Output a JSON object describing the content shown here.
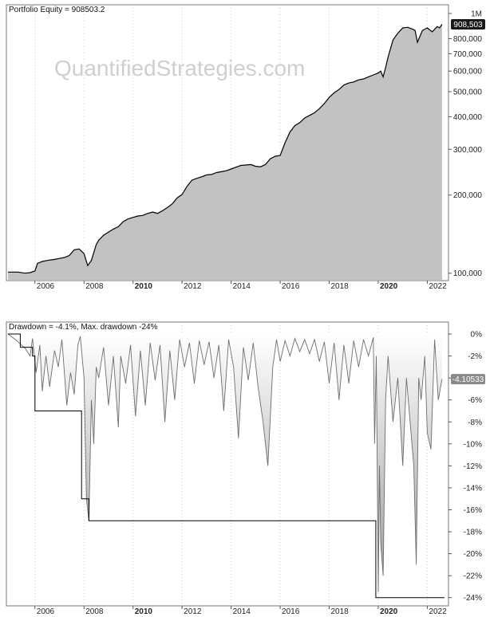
{
  "watermark": "QuantifiedStrategies.com",
  "colors": {
    "equity_fill": "#c2c2c2",
    "equity_line": "#000000",
    "drawdown_fill_top": "#ffffff",
    "drawdown_fill_bottom": "#9a9a9a",
    "maxdd_line": "#000000",
    "badge_bg": "#1a1a1a",
    "badge_dd_bg": "#8a8a8a"
  },
  "chart_data": [
    {
      "type": "area",
      "title": "Portfolio Equity = 908503.2",
      "y_scale": "log",
      "ylim": [
        95000,
        1050000
      ],
      "xlim": [
        2004.9,
        2022.8
      ],
      "x_tick_labels": [
        "2006",
        "2008",
        "2010",
        "2012",
        "2014",
        "2016",
        "2018",
        "2020",
        "2022"
      ],
      "x_tick_values": [
        2006,
        2008,
        2010,
        2012,
        2014,
        2016,
        2018,
        2020,
        2022
      ],
      "bold_years": [
        "2010",
        "2020"
      ],
      "y_ticks": [
        {
          "value": 100000,
          "label": "100,000"
        },
        {
          "value": 200000,
          "label": "200,000"
        },
        {
          "value": 300000,
          "label": "300,000"
        },
        {
          "value": 400000,
          "label": "400,000"
        },
        {
          "value": 500000,
          "label": "500,000"
        },
        {
          "value": 600000,
          "label": "600,000"
        },
        {
          "value": 700000,
          "label": "700,000"
        },
        {
          "value": 800000,
          "label": "800,000"
        },
        {
          "value": 1000000,
          "label": "1M"
        }
      ],
      "last_value_label": "908,503",
      "last_value": 908503,
      "series": [
        {
          "x": [
            2004.9,
            2005.3,
            2005.6,
            2005.8,
            2006.0,
            2006.1,
            2006.3,
            2006.5,
            2006.8,
            2007.0,
            2007.2,
            2007.4,
            2007.6,
            2007.8,
            2008.0,
            2008.15,
            2008.3,
            2008.5,
            2008.6,
            2008.8,
            2009.0,
            2009.2,
            2009.4,
            2009.6,
            2009.8,
            2010.0,
            2010.2,
            2010.4,
            2010.6,
            2010.8,
            2011.0,
            2011.2,
            2011.4,
            2011.6,
            2011.8,
            2012.0,
            2012.2,
            2012.4,
            2012.6,
            2012.8,
            2013.0,
            2013.2,
            2013.4,
            2013.6,
            2013.8,
            2014.0,
            2014.2,
            2014.4,
            2014.6,
            2014.8,
            2015.0,
            2015.2,
            2015.4,
            2015.6,
            2015.8,
            2016.0,
            2016.2,
            2016.4,
            2016.6,
            2016.8,
            2017.0,
            2017.2,
            2017.4,
            2017.6,
            2017.8,
            2018.0,
            2018.2,
            2018.4,
            2018.6,
            2018.8,
            2019.0,
            2019.2,
            2019.4,
            2019.6,
            2019.8,
            2020.0,
            2020.1,
            2020.2,
            2020.3,
            2020.4,
            2020.6,
            2020.8,
            2021.0,
            2021.2,
            2021.4,
            2021.5,
            2021.6,
            2021.8,
            2022.0,
            2022.2,
            2022.4,
            2022.5,
            2022.6
          ],
          "y": [
            101000,
            101000,
            100000,
            100500,
            102000,
            109000,
            111000,
            112000,
            113000,
            114000,
            115000,
            117000,
            123000,
            124000,
            119000,
            107000,
            112000,
            129000,
            134000,
            140000,
            144000,
            148000,
            151000,
            158000,
            162000,
            164000,
            166000,
            167000,
            170000,
            172000,
            170000,
            174000,
            179000,
            185000,
            195000,
            201000,
            216000,
            228000,
            232000,
            235000,
            239000,
            240000,
            244000,
            246000,
            248000,
            252000,
            256000,
            260000,
            261000,
            262000,
            258000,
            257000,
            262000,
            276000,
            282000,
            284000,
            318000,
            350000,
            370000,
            380000,
            396000,
            405000,
            415000,
            430000,
            450000,
            475000,
            495000,
            510000,
            530000,
            540000,
            545000,
            555000,
            560000,
            570000,
            580000,
            590000,
            600000,
            570000,
            620000,
            680000,
            790000,
            840000,
            880000,
            885000,
            870000,
            860000,
            775000,
            860000,
            880000,
            850000,
            890000,
            880000,
            908503
          ]
        }
      ]
    },
    {
      "type": "area",
      "title": "Drawdown = -4.1%, Max. drawdown -24%",
      "ylim": [
        -24.6,
        0.8
      ],
      "xlim": [
        2004.9,
        2022.8
      ],
      "x_tick_labels": [
        "2006",
        "2008",
        "2010",
        "2012",
        "2014",
        "2016",
        "2018",
        "2020",
        "2022"
      ],
      "x_tick_values": [
        2006,
        2008,
        2010,
        2012,
        2014,
        2016,
        2018,
        2020,
        2022
      ],
      "bold_years": [
        "2010",
        "2020"
      ],
      "y_ticks": [
        {
          "value": 0,
          "label": "0%"
        },
        {
          "value": -2,
          "label": "-2%"
        },
        {
          "value": -4,
          "label": "-4%"
        },
        {
          "value": -6,
          "label": "-6%"
        },
        {
          "value": -8,
          "label": "-8%"
        },
        {
          "value": -10,
          "label": "-10%"
        },
        {
          "value": -12,
          "label": "-12%"
        },
        {
          "value": -14,
          "label": "-14%"
        },
        {
          "value": -16,
          "label": "-16%"
        },
        {
          "value": -18,
          "label": "-18%"
        },
        {
          "value": -20,
          "label": "-20%"
        },
        {
          "value": -22,
          "label": "-22%"
        },
        {
          "value": -24,
          "label": "-24%"
        }
      ],
      "last_value_label": "-4.10533",
      "last_value": -4.10533,
      "series": [
        {
          "name": "Drawdown",
          "x": [
            2004.9,
            2005.2,
            2005.4,
            2005.6,
            2005.8,
            2005.9,
            2006.05,
            2006.2,
            2006.3,
            2006.45,
            2006.6,
            2006.8,
            2006.95,
            2007.1,
            2007.3,
            2007.45,
            2007.6,
            2007.75,
            2007.85,
            2008.0,
            2008.1,
            2008.2,
            2008.3,
            2008.4,
            2008.5,
            2008.6,
            2008.8,
            2009.0,
            2009.2,
            2009.4,
            2009.5,
            2009.7,
            2009.9,
            2010.1,
            2010.3,
            2010.5,
            2010.7,
            2010.9,
            2011.1,
            2011.3,
            2011.5,
            2011.7,
            2011.9,
            2012.1,
            2012.3,
            2012.5,
            2012.7,
            2012.9,
            2013.1,
            2013.3,
            2013.5,
            2013.7,
            2013.9,
            2014.1,
            2014.3,
            2014.5,
            2014.7,
            2014.9,
            2015.1,
            2015.3,
            2015.5,
            2015.7,
            2015.85,
            2016.0,
            2016.2,
            2016.4,
            2016.6,
            2016.8,
            2017.0,
            2017.2,
            2017.4,
            2017.6,
            2017.8,
            2018.0,
            2018.2,
            2018.4,
            2018.6,
            2018.8,
            2019.0,
            2019.2,
            2019.4,
            2019.6,
            2019.8,
            2019.85,
            2019.92,
            2020.0,
            2020.05,
            2020.1,
            2020.2,
            2020.3,
            2020.4,
            2020.6,
            2020.8,
            2021.0,
            2021.15,
            2021.3,
            2021.45,
            2021.55,
            2021.65,
            2021.75,
            2021.9,
            2022.0,
            2022.15,
            2022.3,
            2022.45,
            2022.6
          ],
          "y": [
            0,
            -0.5,
            -0.9,
            -1.3,
            -2.0,
            -0.4,
            -3.5,
            -1.0,
            -5.2,
            -2.0,
            -4.8,
            -1.5,
            -3.0,
            -0.5,
            -6.5,
            -3.5,
            -5.5,
            -1.0,
            -0.2,
            -4.0,
            -15.0,
            -17.0,
            -6.0,
            -10.0,
            -3.0,
            -4.0,
            -1.2,
            -6.5,
            -2.0,
            -8.5,
            -2.0,
            -4.5,
            -1.0,
            -7.5,
            -1.5,
            -6.5,
            -0.8,
            -4.2,
            -1.0,
            -8.0,
            -1.5,
            -6.0,
            -0.5,
            -3.0,
            -0.8,
            -4.5,
            -0.6,
            -2.8,
            -0.7,
            -4.0,
            -1.0,
            -7.0,
            -0.5,
            -3.0,
            -9.5,
            -1.2,
            -4.2,
            -0.8,
            -4.8,
            -8.0,
            -12.0,
            -3.0,
            -0.5,
            -2.5,
            -0.6,
            -2.0,
            -0.4,
            -1.6,
            -0.5,
            -1.8,
            -0.5,
            -2.5,
            -0.7,
            -4.5,
            -0.8,
            -6.0,
            -1.0,
            -4.5,
            -0.6,
            -3.0,
            -0.5,
            -2.0,
            -0.3,
            -10.0,
            -2.0,
            -23.5,
            -12.0,
            -19.0,
            -22.0,
            -6.0,
            -2.0,
            -8.0,
            -4.0,
            -12.0,
            -4.0,
            -8.0,
            -12.0,
            -21.0,
            -4.0,
            -6.0,
            -2.0,
            -9.0,
            -10.5,
            -0.5,
            -6.0,
            -4.1
          ]
        },
        {
          "name": "Max. drawdown",
          "x": [
            2004.9,
            2005.4,
            2005.4,
            2005.9,
            2005.9,
            2006.0,
            2006.0,
            2007.9,
            2007.9,
            2008.2,
            2008.2,
            2019.9,
            2019.9,
            2022.7
          ],
          "y": [
            0,
            0,
            -1.2,
            -1.2,
            -2.0,
            -2.0,
            -7.0,
            -7.0,
            -15.0,
            -15.0,
            -17.0,
            -17.0,
            -24.0,
            -24.0
          ]
        }
      ]
    }
  ]
}
